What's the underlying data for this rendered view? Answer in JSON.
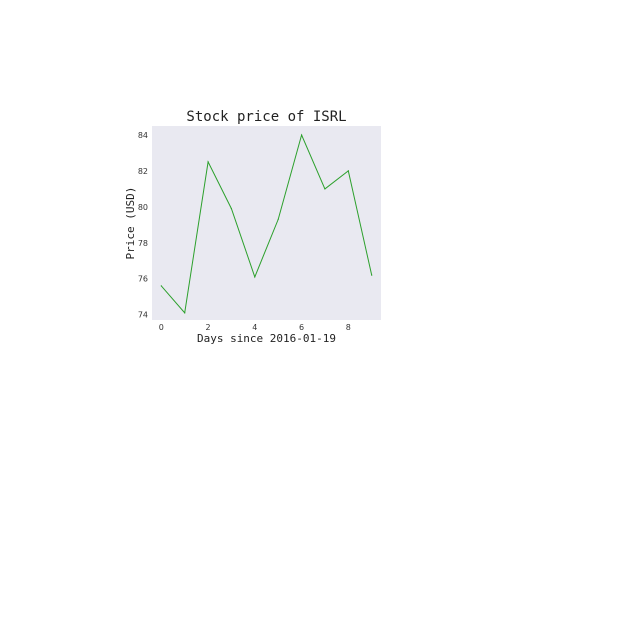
{
  "chart_data": {
    "type": "line",
    "title": "Stock price of ISRL",
    "xlabel": "Days since 2016-01-19",
    "ylabel": "Price (USD)",
    "x": [
      0,
      1,
      2,
      3,
      4,
      5,
      6,
      7,
      8,
      9
    ],
    "series": [
      {
        "values": [
          75.6,
          74.1,
          82.5,
          79.9,
          76.1,
          79.3,
          84.0,
          81.0,
          82.0,
          76.2
        ],
        "color": "#2ca02c"
      }
    ],
    "xlim": [
      -0.4,
      9.4
    ],
    "ylim": [
      73.7,
      84.5
    ],
    "xticks": [
      0,
      2,
      4,
      6,
      8
    ],
    "yticks": [
      74,
      76,
      78,
      80,
      82,
      84
    ],
    "grid": false,
    "background_color": "#e9e9f1"
  }
}
